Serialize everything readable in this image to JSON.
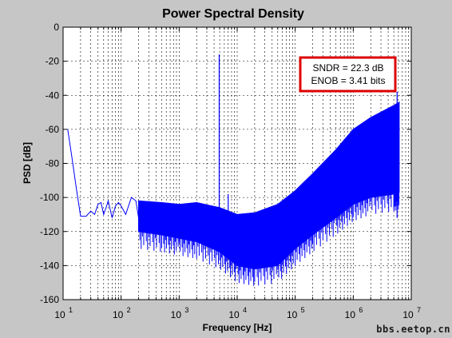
{
  "watermark": "bbs.eetop.cn",
  "chart_data": {
    "type": "line",
    "title": "Power Spectral Density",
    "xlabel": "Frequency [Hz]",
    "ylabel": "PSD [dB]",
    "xscale": "log",
    "xlim": [
      10,
      10000000
    ],
    "ylim": [
      -160,
      0
    ],
    "grid": true,
    "x_ticks": [
      {
        "value": 10,
        "base": "10",
        "exp": "1"
      },
      {
        "value": 100,
        "base": "10",
        "exp": "2"
      },
      {
        "value": 1000,
        "base": "10",
        "exp": "3"
      },
      {
        "value": 10000,
        "base": "10",
        "exp": "4"
      },
      {
        "value": 100000,
        "base": "10",
        "exp": "5"
      },
      {
        "value": 1000000,
        "base": "10",
        "exp": "6"
      },
      {
        "value": 10000000,
        "base": "10",
        "exp": "7"
      }
    ],
    "y_ticks": [
      0,
      -20,
      -40,
      -60,
      -80,
      -100,
      -120,
      -140,
      -160
    ],
    "series": [
      {
        "color": "#0000ff",
        "x": [
          12,
          14,
          17,
          20,
          25,
          30,
          35,
          40,
          45,
          50,
          55,
          60,
          70,
          80,
          90,
          100,
          120,
          150,
          180,
          200,
          250,
          300,
          400,
          500,
          700,
          1000,
          1500,
          2000,
          3000,
          5000,
          7000,
          10000,
          14000,
          20000,
          30000,
          50000,
          70000,
          100000,
          150000,
          200000,
          300000,
          500000,
          700000,
          1000000,
          1500000,
          2000000,
          3000000,
          5000000,
          6200000
        ],
        "y": [
          -60,
          -75,
          -95,
          -111,
          -111,
          -108,
          -110,
          -104,
          -103,
          -110,
          -106,
          -102,
          -112,
          -105,
          -103,
          -105,
          -110,
          -100,
          -102,
          -112,
          -108,
          -114,
          -110,
          -113,
          -110,
          -108,
          -110,
          -107,
          -109,
          -112,
          -116,
          -118,
          -120,
          -118,
          -116,
          -112,
          -108,
          -104,
          -99,
          -95,
          -89,
          -83,
          -79,
          -75,
          -71,
          -68,
          -64,
          -60,
          -59
        ],
        "noise_band": {
          "x": [
            200,
            500,
            1000,
            2000,
            5000,
            10000,
            20000,
            50000,
            100000,
            200000,
            500000,
            1000000,
            2000000,
            5000000,
            6200000
          ],
          "upper": [
            -102,
            -103,
            -104,
            -103,
            -106,
            -110,
            -109,
            -104,
            -96,
            -86,
            -72,
            -60,
            -53,
            -46,
            -44
          ],
          "lower": [
            -120,
            -122,
            -124,
            -126,
            -132,
            -140,
            -142,
            -140,
            -130,
            -122,
            -112,
            -104,
            -100,
            -98,
            -97
          ]
        }
      }
    ],
    "spikes": [
      {
        "x": 4900,
        "y": -16
      },
      {
        "x": 7000,
        "y": -98
      },
      {
        "x": 5700000,
        "y": -38
      }
    ],
    "annotation": {
      "lines": [
        "SNDR = 22.3 dB",
        "ENOB = 3.41 bits"
      ],
      "border_color": "#dd0000"
    }
  }
}
